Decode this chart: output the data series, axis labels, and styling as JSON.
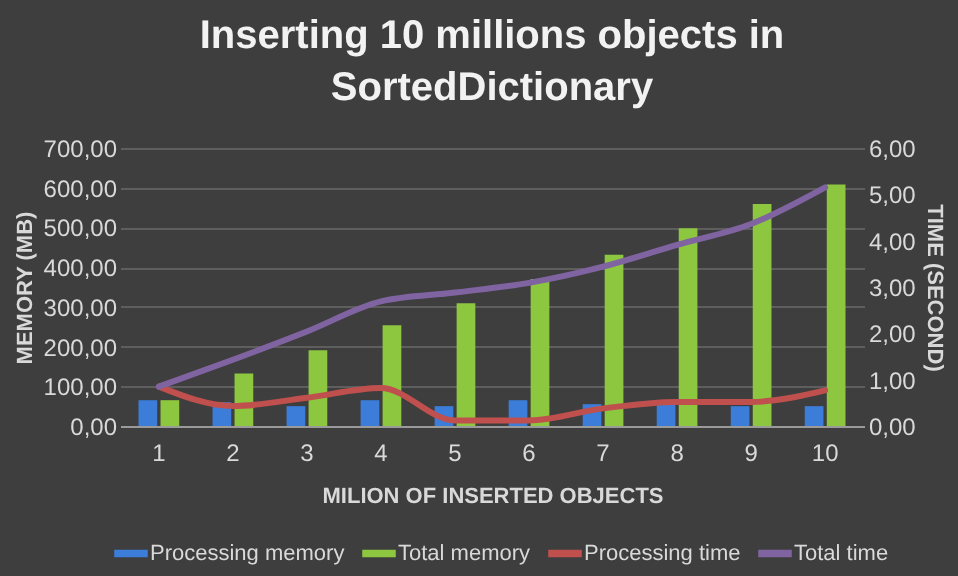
{
  "chart_data": {
    "type": "bar",
    "title": "Inserting 10 millions objects in SortedDictionary",
    "xlabel": "MILION  OF INSERTED OBJECTS",
    "ylabel": "MEMORY (MB)",
    "y2label": "TIME (SECOND)",
    "categories": [
      "1",
      "2",
      "3",
      "4",
      "5",
      "6",
      "7",
      "8",
      "9",
      "10"
    ],
    "series": [
      {
        "name": "Processing memory",
        "color": "#3b7dd8",
        "values": [
          65,
          60,
          50,
          65,
          50,
          65,
          55,
          65,
          50,
          50
        ]
      },
      {
        "name": "Total memory",
        "color": "#8dc63f",
        "values": [
          65,
          132,
          191,
          254,
          309,
          370,
          431,
          498,
          559,
          608
        ]
      },
      {
        "name": "Processing time",
        "type": "line",
        "axis": "y2",
        "color": "#c0504d",
        "values": [
          0.85,
          0.43,
          0.61,
          0.82,
          0.12,
          0.12,
          0.38,
          0.52,
          0.52,
          0.77
        ]
      },
      {
        "name": "Total time",
        "type": "line",
        "axis": "y2",
        "color": "#8064a2",
        "values": [
          0.85,
          1.43,
          2.04,
          2.69,
          2.88,
          3.09,
          3.44,
          3.91,
          4.36,
          5.15
        ]
      }
    ],
    "ylim": [
      0,
      700
    ],
    "yticks": [
      {
        "value": 0,
        "label": "0,00"
      },
      {
        "value": 100,
        "label": "100,00"
      },
      {
        "value": 200,
        "label": "200,00"
      },
      {
        "value": 300,
        "label": "300,00"
      },
      {
        "value": 400,
        "label": "400,00"
      },
      {
        "value": 500,
        "label": "500,00"
      },
      {
        "value": 600,
        "label": "600,00"
      },
      {
        "value": 700,
        "label": "700,00"
      }
    ],
    "y2lim": [
      0,
      6
    ],
    "y2ticks": [
      {
        "value": 0,
        "label": "0,00"
      },
      {
        "value": 1,
        "label": "1,00"
      },
      {
        "value": 2,
        "label": "2,00"
      },
      {
        "value": 3,
        "label": "3,00"
      },
      {
        "value": 4,
        "label": "4,00"
      },
      {
        "value": 5,
        "label": "5,00"
      },
      {
        "value": 6,
        "label": "6,00"
      }
    ],
    "grid": "y",
    "legend": "bottom",
    "marker": "none",
    "line_style": "solid"
  }
}
